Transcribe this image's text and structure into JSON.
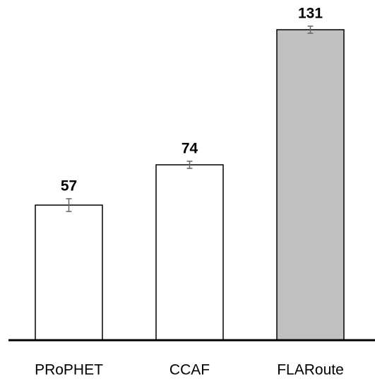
{
  "chart_data": {
    "type": "bar",
    "categories": [
      "PRoPHET",
      "CCAF",
      "FLARoute"
    ],
    "values": [
      57,
      74,
      131
    ],
    "errors": [
      2.7,
      1.5,
      1.5
    ],
    "colors": [
      "#ffffff",
      "#ffffff",
      "#c0c0c0"
    ]
  }
}
